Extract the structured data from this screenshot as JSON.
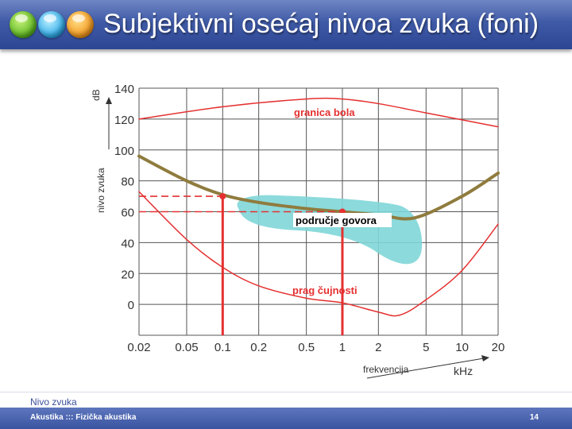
{
  "slide": {
    "title": "Subjektivni osećaj nivoa zvuka (foni)",
    "subtitle": "Nivo zvuka",
    "footer": "Akustika ::: Fizička akustika",
    "page_number": "14"
  },
  "colors": {
    "header_bg": "#3f5aa6",
    "threshold_curve": "#e53030",
    "equal_loudness_curve": "#8f7c3e",
    "speech_area": "#7fd6d8",
    "grid": "#555555"
  },
  "chart_data": {
    "type": "line",
    "ylabel": "nivo zvuka",
    "yunit": "dB",
    "xlabel": "frekvencija",
    "xunit": "kHz",
    "y_ticks": [
      140,
      120,
      100,
      80,
      60,
      40,
      20,
      0
    ],
    "x_ticks": [
      "0.02",
      "0.05",
      "0.1",
      "0.2",
      "0.5",
      "1",
      "2",
      "5",
      "10",
      "20"
    ],
    "xscale": "log",
    "xlim": [
      0.02,
      20
    ],
    "ylim": [
      -20,
      140
    ],
    "grid": true,
    "series": [
      {
        "name": "granica bola",
        "x": [
          0.02,
          0.1,
          0.5,
          1,
          2,
          5,
          20
        ],
        "y": [
          120,
          128,
          133,
          133,
          130,
          124,
          115
        ]
      },
      {
        "name": "prag čujnosti",
        "x": [
          0.02,
          0.05,
          0.1,
          0.2,
          0.5,
          1,
          2,
          3,
          5,
          10,
          20
        ],
        "y": [
          73,
          42,
          24,
          12,
          4,
          1,
          -5,
          -7,
          3,
          22,
          52
        ]
      },
      {
        "name": "",
        "x": [
          0.02,
          0.05,
          0.1,
          0.2,
          0.5,
          1,
          2,
          4,
          10,
          20
        ],
        "y": [
          96,
          80,
          71,
          66,
          62,
          60,
          58,
          56,
          70,
          85
        ]
      }
    ],
    "speech_area_label": "područje govora",
    "markers": [
      {
        "x": 0.1,
        "y": 70
      },
      {
        "x": 1,
        "y": 60
      }
    ]
  }
}
